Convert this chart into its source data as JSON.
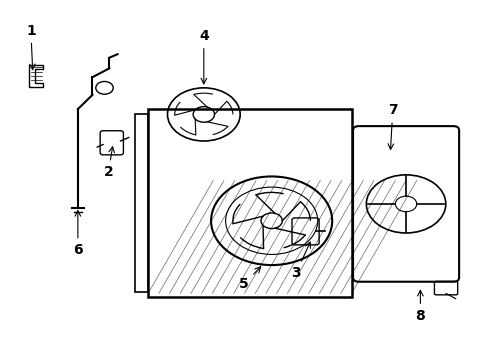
{
  "background_color": "#ffffff",
  "line_color": "#000000",
  "fig_width": 4.9,
  "fig_height": 3.6,
  "dpi": 100,
  "label_fontsize": 10
}
